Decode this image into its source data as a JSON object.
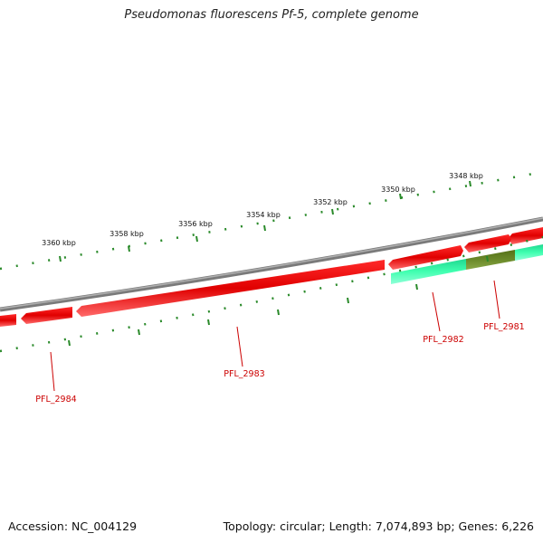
{
  "title": "Pseudomonas fluorescens Pf-5, complete genome",
  "footer": {
    "accession": "Accession: NC_004129",
    "summary": "Topology: circular; Length: 7,074,893 bp; Genes: 6,226"
  },
  "colors": {
    "backbone": "#808080",
    "gene_forward": "#e60000",
    "gene_highlight": "#40ffb0",
    "gene_overlap": "#6b8a2a",
    "tick": "#2a8a2a",
    "label": "#cc0000"
  },
  "scale_ticks": [
    {
      "label": "3348 kbp"
    },
    {
      "label": "3350 kbp"
    },
    {
      "label": "3352 kbp"
    },
    {
      "label": "3354 kbp"
    },
    {
      "label": "3356 kbp"
    },
    {
      "label": "3358 kbp"
    },
    {
      "label": "3360 kbp"
    }
  ],
  "genes": [
    {
      "name": "PFL_2981"
    },
    {
      "name": "PFL_2982"
    },
    {
      "name": "PFL_2983"
    },
    {
      "name": "PFL_2984"
    }
  ]
}
